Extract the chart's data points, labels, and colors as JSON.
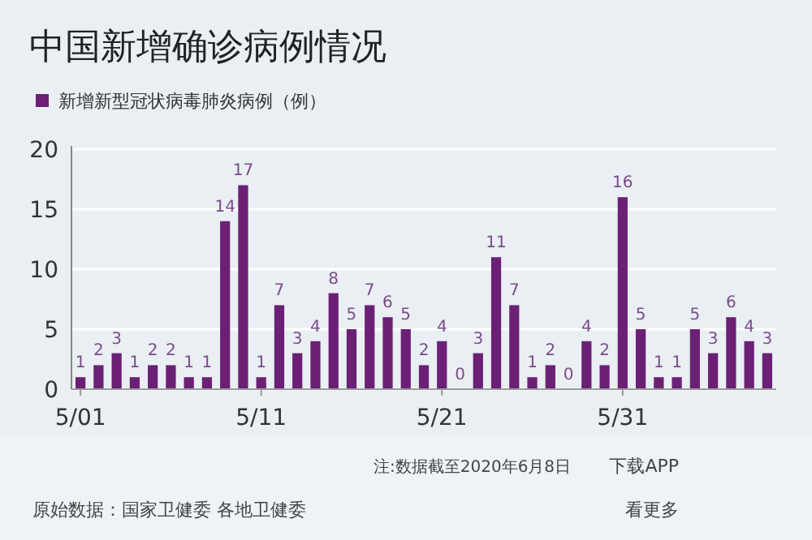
{
  "chart_data": {
    "type": "bar",
    "title": "中国新增确诊病例情况",
    "categories": [
      "5/01",
      null,
      null,
      null,
      null,
      null,
      null,
      null,
      null,
      null,
      "5/11",
      null,
      null,
      null,
      null,
      null,
      null,
      null,
      null,
      null,
      "5/21",
      null,
      null,
      null,
      null,
      null,
      null,
      null,
      null,
      null,
      "5/31",
      null,
      null,
      null,
      null,
      null,
      null,
      null,
      null
    ],
    "series": [
      {
        "name": "新增新型冠状病毒肺炎病例（例）",
        "color": "#6b2076",
        "values": [
          1,
          2,
          3,
          1,
          2,
          2,
          1,
          1,
          14,
          17,
          1,
          7,
          3,
          4,
          8,
          5,
          7,
          6,
          5,
          2,
          4,
          0,
          3,
          11,
          7,
          1,
          2,
          0,
          4,
          2,
          16,
          5,
          1,
          1,
          5,
          3,
          6,
          4,
          3
        ]
      }
    ],
    "ylim": [
      0,
      20
    ],
    "yticks": [
      0,
      5,
      10,
      15,
      20
    ],
    "grid": "y",
    "legend": "top left",
    "data_labels": true,
    "annotations": [
      "注:数据截至2020年6月8日",
      "下载APP",
      "原始数据：国家卫健委 各地卫健委",
      "看更多"
    ]
  }
}
